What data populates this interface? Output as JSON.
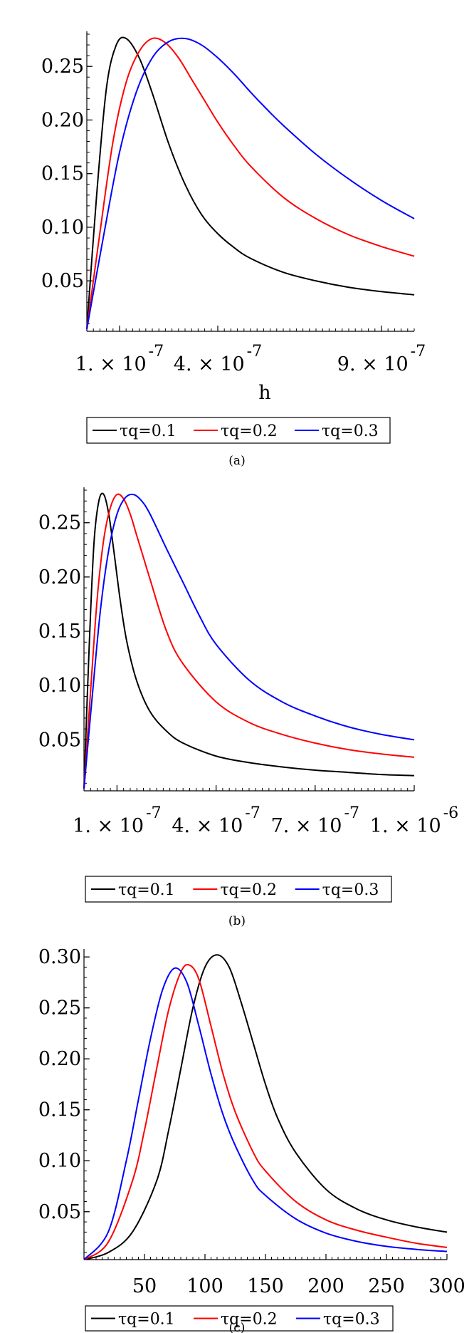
{
  "chart_data": [
    {
      "type": "line",
      "caption": "(a)",
      "xlabel": "h",
      "xlim": [
        0,
        1e-06
      ],
      "ylim": [
        0.003,
        0.28
      ],
      "x_ticks": [
        {
          "value": 1e-07,
          "mantissa": "1.",
          "exp": "-7"
        },
        {
          "value": 4e-07,
          "mantissa": "4.",
          "exp": "-7"
        },
        {
          "value": 9e-07,
          "mantissa": "9.",
          "exp": "-7"
        }
      ],
      "y_ticks": [
        {
          "value": 0.05,
          "label": "0.05"
        },
        {
          "value": 0.1,
          "label": "0.10"
        },
        {
          "value": 0.15,
          "label": "0.15"
        },
        {
          "value": 0.2,
          "label": "0.20"
        },
        {
          "value": 0.25,
          "label": "0.25"
        }
      ],
      "series": [
        {
          "name": "τq=0.1",
          "color": "#000000",
          "x": [
            0,
            3e-08,
            6e-08,
            9e-08,
            1.2e-07,
            1.6e-07,
            2e-07,
            2.5e-07,
            3e-07,
            3.5e-07,
            4e-07,
            4.5e-07,
            5e-07,
            6e-07,
            7e-07,
            8e-07,
            9e-07,
            1e-06
          ],
          "y": [
            0.005,
            0.13,
            0.23,
            0.27,
            0.276,
            0.258,
            0.225,
            0.178,
            0.14,
            0.112,
            0.094,
            0.081,
            0.071,
            0.058,
            0.05,
            0.044,
            0.04,
            0.037
          ]
        },
        {
          "name": "τq=0.2",
          "color": "#ff0000",
          "x": [
            0,
            4e-08,
            8e-08,
            1.2e-07,
            1.6e-07,
            2e-07,
            2.4e-07,
            2.8e-07,
            3.2e-07,
            3.6e-07,
            4e-07,
            4.5e-07,
            5e-07,
            6e-07,
            7e-07,
            8e-07,
            9e-07,
            1e-06
          ],
          "y": [
            0.005,
            0.095,
            0.18,
            0.235,
            0.264,
            0.276,
            0.272,
            0.258,
            0.238,
            0.218,
            0.198,
            0.176,
            0.157,
            0.128,
            0.108,
            0.093,
            0.082,
            0.073
          ]
        },
        {
          "name": "τq=0.3",
          "color": "#0000ff",
          "x": [
            0,
            5e-08,
            1e-07,
            1.5e-07,
            2e-07,
            2.5e-07,
            3e-07,
            3.5e-07,
            4e-07,
            4.5e-07,
            5e-07,
            5.5e-07,
            6e-07,
            7e-07,
            8e-07,
            9e-07,
            1e-06
          ],
          "y": [
            0.005,
            0.09,
            0.17,
            0.225,
            0.258,
            0.273,
            0.276,
            0.27,
            0.258,
            0.243,
            0.226,
            0.21,
            0.195,
            0.168,
            0.145,
            0.125,
            0.108
          ]
        }
      ],
      "legend": [
        "τq=0.1",
        "τq=0.2",
        "τq=0.3"
      ]
    },
    {
      "type": "line",
      "caption": "(b)",
      "xlabel": "",
      "xlim": [
        0,
        1e-06
      ],
      "ylim": [
        0.003,
        0.28
      ],
      "x_ticks": [
        {
          "value": 1e-07,
          "mantissa": "1.",
          "exp": "-7"
        },
        {
          "value": 4e-07,
          "mantissa": "4.",
          "exp": "-7"
        },
        {
          "value": 7e-07,
          "mantissa": "7.",
          "exp": "-7"
        },
        {
          "value": 1e-06,
          "mantissa": "1.",
          "exp": "-6"
        }
      ],
      "y_ticks": [
        {
          "value": 0.05,
          "label": "0.05"
        },
        {
          "value": 0.1,
          "label": "0.10"
        },
        {
          "value": 0.15,
          "label": "0.15"
        },
        {
          "value": 0.2,
          "label": "0.20"
        },
        {
          "value": 0.25,
          "label": "0.25"
        }
      ],
      "series": [
        {
          "name": "τq=0.1",
          "color": "#000000",
          "x": [
            0,
            1.5e-08,
            3e-08,
            4.5e-08,
            6e-08,
            7.5e-08,
            9e-08,
            1.1e-07,
            1.3e-07,
            1.6e-07,
            2e-07,
            2.5e-07,
            3e-07,
            4e-07,
            5e-07,
            6e-07,
            7e-07,
            8e-07,
            9e-07,
            1e-06
          ],
          "y": [
            0.005,
            0.13,
            0.23,
            0.27,
            0.276,
            0.258,
            0.225,
            0.178,
            0.14,
            0.104,
            0.076,
            0.058,
            0.047,
            0.035,
            0.029,
            0.025,
            0.022,
            0.02,
            0.018,
            0.017
          ]
        },
        {
          "name": "τq=0.2",
          "color": "#ff0000",
          "x": [
            0,
            2e-08,
            4e-08,
            6e-08,
            8e-08,
            1e-07,
            1.2e-07,
            1.4e-07,
            1.6e-07,
            1.8e-07,
            2e-07,
            2.5e-07,
            3e-07,
            4e-07,
            5e-07,
            6e-07,
            7e-07,
            8e-07,
            9e-07,
            1e-06
          ],
          "y": [
            0.005,
            0.095,
            0.18,
            0.235,
            0.264,
            0.276,
            0.272,
            0.258,
            0.238,
            0.218,
            0.198,
            0.15,
            0.12,
            0.085,
            0.066,
            0.055,
            0.047,
            0.041,
            0.037,
            0.034
          ]
        },
        {
          "name": "τq=0.3",
          "color": "#0000ff",
          "x": [
            0,
            2.5e-08,
            5e-08,
            7.5e-08,
            1e-07,
            1.25e-07,
            1.5e-07,
            1.75e-07,
            2e-07,
            2.5e-07,
            3e-07,
            3.5e-07,
            4e-07,
            5e-07,
            6e-07,
            7e-07,
            8e-07,
            9e-07,
            1e-06
          ],
          "y": [
            0.005,
            0.09,
            0.17,
            0.225,
            0.258,
            0.273,
            0.276,
            0.27,
            0.258,
            0.226,
            0.195,
            0.164,
            0.138,
            0.105,
            0.085,
            0.072,
            0.062,
            0.055,
            0.05
          ]
        }
      ],
      "legend": [
        "τq=0.1",
        "τq=0.2",
        "τq=0.3"
      ]
    },
    {
      "type": "line",
      "caption": "(c)",
      "xlabel": "",
      "xlim": [
        0,
        300
      ],
      "ylim": [
        0.003,
        0.305
      ],
      "x_ticks": [
        {
          "value": 50,
          "label": "50"
        },
        {
          "value": 100,
          "label": "100"
        },
        {
          "value": 150,
          "label": "150"
        },
        {
          "value": 200,
          "label": "200"
        },
        {
          "value": 250,
          "label": "250"
        },
        {
          "value": 300,
          "label": "300"
        }
      ],
      "y_ticks": [
        {
          "value": 0.05,
          "label": "0.05"
        },
        {
          "value": 0.1,
          "label": "0.10"
        },
        {
          "value": 0.15,
          "label": "0.15"
        },
        {
          "value": 0.2,
          "label": "0.20"
        },
        {
          "value": 0.25,
          "label": "0.25"
        },
        {
          "value": 0.3,
          "label": "0.30"
        }
      ],
      "series": [
        {
          "name": "τq=0.1",
          "color": "#000000",
          "x": [
            0,
            20,
            40,
            60,
            70,
            80,
            90,
            100,
            110,
            120,
            130,
            140,
            150,
            160,
            175,
            200,
            225,
            250,
            275,
            300
          ],
          "y": [
            0.003,
            0.01,
            0.03,
            0.08,
            0.13,
            0.19,
            0.25,
            0.29,
            0.302,
            0.29,
            0.255,
            0.215,
            0.175,
            0.142,
            0.108,
            0.072,
            0.053,
            0.042,
            0.035,
            0.03
          ]
        },
        {
          "name": "τq=0.2",
          "color": "#ff0000",
          "x": [
            0,
            20,
            40,
            50,
            60,
            70,
            80,
            87,
            95,
            105,
            115,
            125,
            140,
            150,
            175,
            200,
            225,
            250,
            275,
            300
          ],
          "y": [
            0.003,
            0.02,
            0.08,
            0.13,
            0.19,
            0.248,
            0.285,
            0.292,
            0.278,
            0.232,
            0.185,
            0.148,
            0.108,
            0.09,
            0.06,
            0.042,
            0.032,
            0.025,
            0.019,
            0.015
          ]
        },
        {
          "name": "τq=0.3",
          "color": "#0000ff",
          "x": [
            0,
            20,
            35,
            45,
            55,
            65,
            75,
            85,
            95,
            105,
            115,
            125,
            140,
            150,
            175,
            200,
            225,
            250,
            275,
            300
          ],
          "y": [
            0.003,
            0.03,
            0.1,
            0.16,
            0.22,
            0.268,
            0.289,
            0.275,
            0.232,
            0.185,
            0.145,
            0.115,
            0.08,
            0.066,
            0.043,
            0.029,
            0.021,
            0.016,
            0.013,
            0.011
          ]
        }
      ],
      "legend": [
        "τq=0.1",
        "τq=0.2",
        "τq=0.3"
      ]
    }
  ]
}
